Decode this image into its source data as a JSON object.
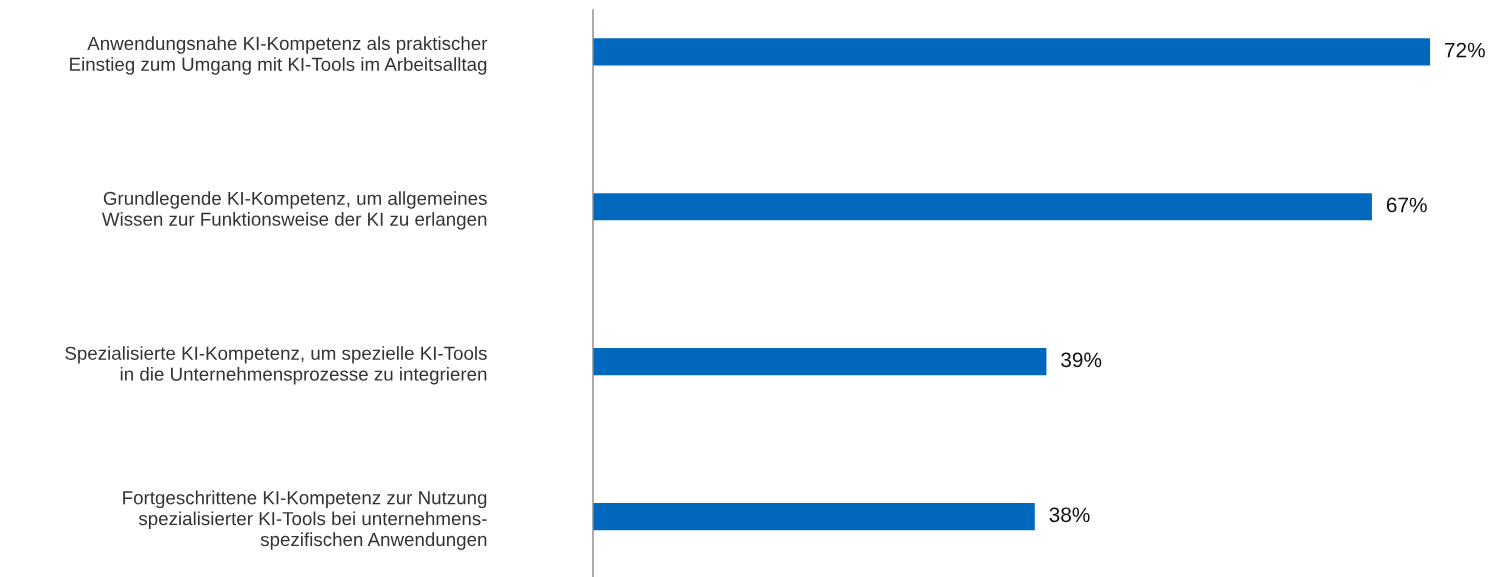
{
  "chart_data": {
    "type": "bar",
    "orientation": "horizontal",
    "categories": [
      "Anwendungsnahe KI-Kompetenz als praktischer\nEinstieg zum Umgang mit KI-Tools im Arbeitsalltag",
      "Grundlegende KI-Kompetenz, um allgemeines\nWissen zur Funktionsweise der KI zu erlangen",
      "Spezialisierte KI-Kompetenz, um spezielle KI-Tools\nin die Unternehmensprozesse zu integrieren",
      "Fortgeschrittene KI-Kompetenz zur Nutzung\nspezialisierter KI-Tools bei unternehmens-\nspezifischen Anwendungen"
    ],
    "values": [
      72,
      67,
      39,
      38
    ],
    "color": "#0068bd",
    "value_labels": [
      "72%",
      "67%",
      "39%",
      "38%"
    ],
    "grid": false,
    "legend": false,
    "tick_labels": "y"
  }
}
